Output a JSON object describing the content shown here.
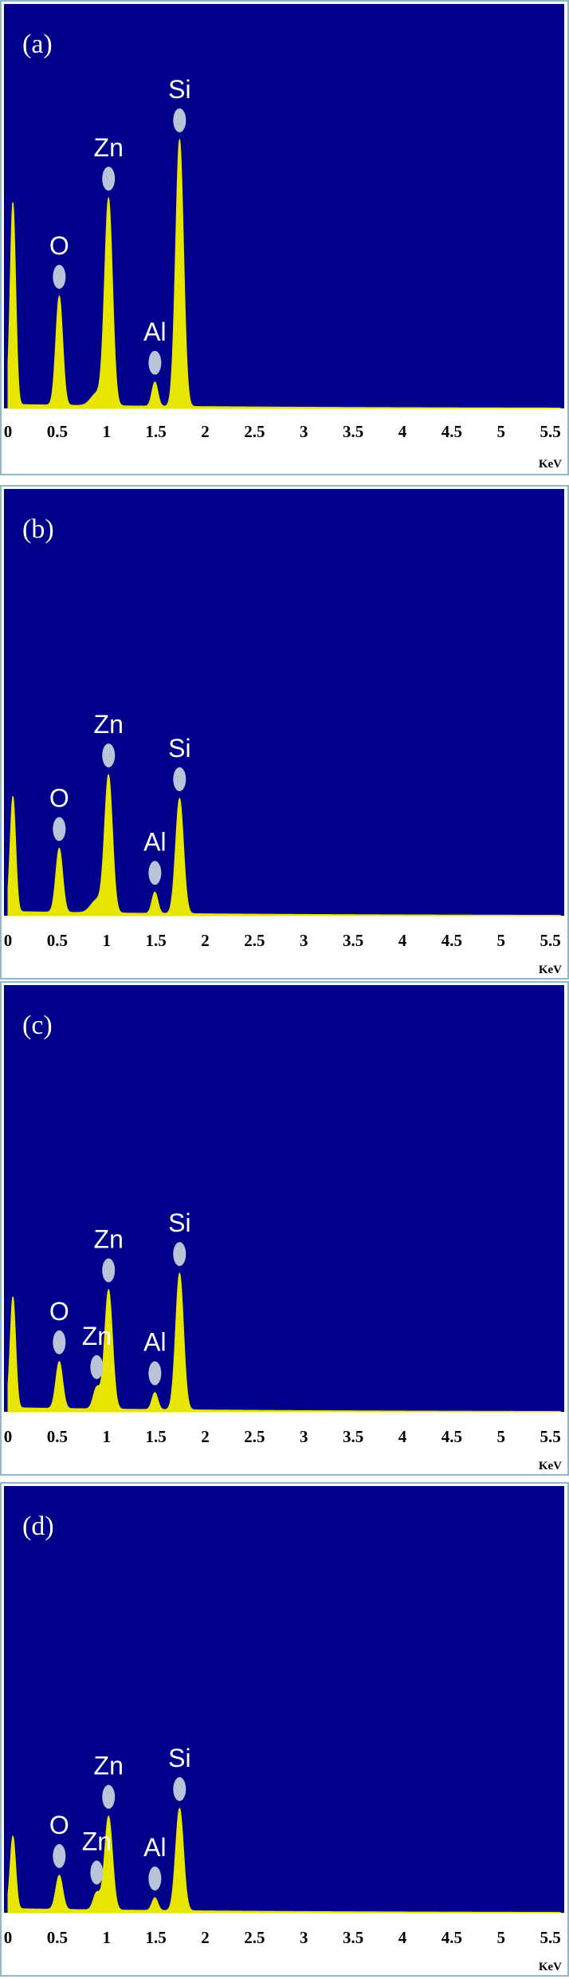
{
  "colors": {
    "plot_background": "#00008b",
    "spectrum": "#e6e600",
    "marker": "#b9c4d8",
    "label_text": "#ffffff"
  },
  "chart_data": [
    {
      "type": "area",
      "panel_label": "(a)",
      "xlabel": "KeV",
      "xlim": [
        0,
        5.6
      ],
      "ylim": [
        0,
        100
      ],
      "x_ticks": [
        "0",
        "0.5",
        "1",
        "1.5",
        "2",
        "2.5",
        "3",
        "3.5",
        "4",
        "4.5",
        "5",
        "5.5"
      ],
      "base_level": 1,
      "peaks": [
        {
          "label": "",
          "energy": 0.05,
          "height": 50,
          "width": 0.028
        },
        {
          "label": "O",
          "energy": 0.52,
          "height": 27,
          "width": 0.035
        },
        {
          "label": "Zn",
          "energy": 1.02,
          "height": 51,
          "width": 0.04
        },
        {
          "label": "",
          "energy": 0.9,
          "height": 3,
          "width": 0.06
        },
        {
          "label": "Al",
          "energy": 1.49,
          "height": 6,
          "width": 0.03
        },
        {
          "label": "Si",
          "energy": 1.74,
          "height": 66,
          "width": 0.04
        }
      ]
    },
    {
      "type": "area",
      "panel_label": "(b)",
      "xlabel": "KeV",
      "xlim": [
        0,
        5.6
      ],
      "ylim": [
        0,
        100
      ],
      "x_ticks": [
        "0",
        "0.5",
        "1",
        "1.5",
        "2",
        "2.5",
        "3",
        "3.5",
        "4",
        "4.5",
        "5",
        "5.5"
      ],
      "base_level": 1,
      "peaks": [
        {
          "label": "",
          "energy": 0.05,
          "height": 27,
          "width": 0.028
        },
        {
          "label": "O",
          "energy": 0.52,
          "height": 15,
          "width": 0.035
        },
        {
          "label": "Zn",
          "energy": 1.02,
          "height": 32,
          "width": 0.04
        },
        {
          "label": "",
          "energy": 0.9,
          "height": 3,
          "width": 0.06
        },
        {
          "label": "Al",
          "energy": 1.49,
          "height": 5,
          "width": 0.03
        },
        {
          "label": "Si",
          "energy": 1.74,
          "height": 27,
          "width": 0.04
        }
      ]
    },
    {
      "type": "area",
      "panel_label": "(c)",
      "xlabel": "KeV",
      "xlim": [
        0,
        5.6
      ],
      "ylim": [
        0,
        100
      ],
      "x_ticks": [
        "0",
        "0.5",
        "1",
        "1.5",
        "2",
        "2.5",
        "3",
        "3.5",
        "4",
        "4.5",
        "5",
        "5.5"
      ],
      "base_level": 1,
      "peaks": [
        {
          "label": "",
          "energy": 0.05,
          "height": 26,
          "width": 0.028
        },
        {
          "label": "O",
          "energy": 0.52,
          "height": 11,
          "width": 0.035
        },
        {
          "label": "Zn",
          "energy": 0.9,
          "height": 5,
          "width": 0.035
        },
        {
          "label": "Zn",
          "energy": 1.02,
          "height": 28,
          "width": 0.04
        },
        {
          "label": "Al",
          "energy": 1.49,
          "height": 4,
          "width": 0.03
        },
        {
          "label": "Si",
          "energy": 1.74,
          "height": 32,
          "width": 0.04
        }
      ]
    },
    {
      "type": "area",
      "panel_label": "(d)",
      "xlabel": "KeV",
      "xlim": [
        0,
        5.6
      ],
      "ylim": [
        0,
        100
      ],
      "x_ticks": [
        "0",
        "0.5",
        "1",
        "1.5",
        "2",
        "2.5",
        "3",
        "3.5",
        "4",
        "4.5",
        "5",
        "5.5"
      ],
      "base_level": 1,
      "peaks": [
        {
          "label": "",
          "energy": 0.05,
          "height": 17,
          "width": 0.028
        },
        {
          "label": "O",
          "energy": 0.52,
          "height": 8,
          "width": 0.035
        },
        {
          "label": "Zn",
          "energy": 0.9,
          "height": 4,
          "width": 0.035
        },
        {
          "label": "Zn",
          "energy": 1.02,
          "height": 22,
          "width": 0.04
        },
        {
          "label": "Al",
          "energy": 1.49,
          "height": 3,
          "width": 0.03
        },
        {
          "label": "Si",
          "energy": 1.74,
          "height": 24,
          "width": 0.04
        }
      ]
    }
  ]
}
